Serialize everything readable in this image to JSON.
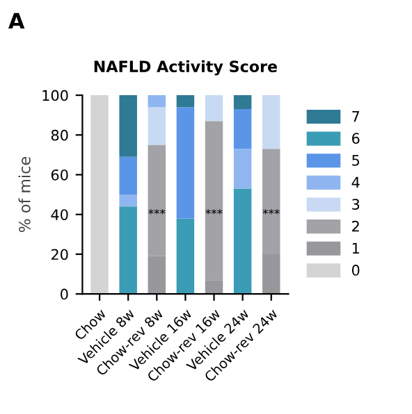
{
  "chart_data": {
    "type": "bar",
    "stacked": true,
    "title": "NAFLD Activity Score",
    "ylabel": "% of mice",
    "categories": [
      "Chow",
      "Vehicle 8w",
      "Chow-rev 8w",
      "Vehicle 16w",
      "Chow-rev 16w",
      "Vehicle 24w",
      "Chow-rev 24w"
    ],
    "series": [
      {
        "name": "0",
        "color": "#d4d4d4",
        "values": [
          100,
          0,
          0,
          0,
          0,
          0,
          0
        ]
      },
      {
        "name": "1",
        "color": "#98989c",
        "values": [
          0,
          0,
          19,
          0,
          7,
          0,
          20
        ]
      },
      {
        "name": "2",
        "color": "#a3a3a7",
        "values": [
          0,
          0,
          56,
          0,
          80,
          0,
          53
        ]
      },
      {
        "name": "3",
        "color": "#c8daf3",
        "values": [
          0,
          0,
          19,
          0,
          13,
          0,
          27
        ]
      },
      {
        "name": "6",
        "color": "#3a9db5",
        "values": [
          0,
          44,
          0,
          38,
          0,
          53,
          0
        ]
      },
      {
        "name": "4",
        "color": "#8fb6f0",
        "values": [
          0,
          6,
          6,
          0,
          0,
          20,
          0
        ]
      },
      {
        "name": "5",
        "color": "#5b95e8",
        "values": [
          0,
          19,
          0,
          56,
          0,
          20,
          0
        ]
      },
      {
        "name": "7",
        "color": "#2f7a94",
        "values": [
          0,
          31,
          0,
          6,
          0,
          7,
          0
        ]
      }
    ],
    "ylim": [
      0,
      100
    ],
    "yticks": [
      0,
      20,
      40,
      60,
      80,
      100
    ],
    "grid": false,
    "legend": "right",
    "annotations": [
      "A",
      "***",
      "***",
      "***"
    ]
  }
}
